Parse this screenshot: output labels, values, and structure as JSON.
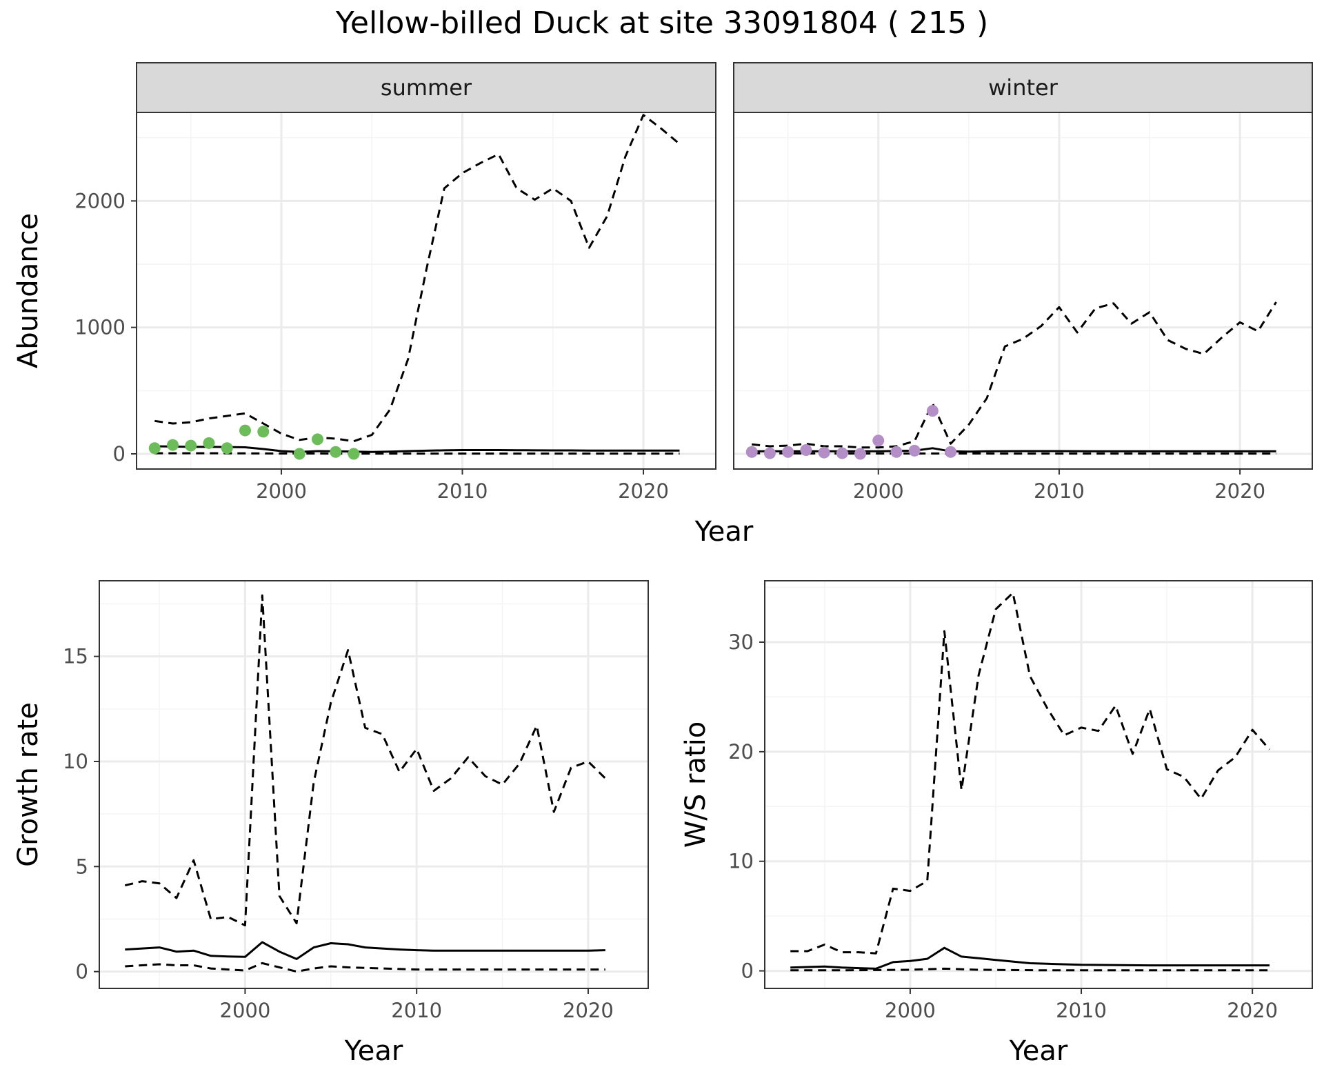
{
  "title": "Yellow-billed Duck at site 33091804 ( 215 )",
  "colors": {
    "summer_points": "#6cbd5a",
    "winter_points": "#b48ec7",
    "strip_fill": "#d9d9d9",
    "grid_major": "#ebebeb",
    "grid_minor": "#f4f4f4",
    "line": "#000000"
  },
  "chart_data": [
    {
      "type": "line",
      "panel": "summer",
      "strip_label": "summer",
      "xlabel": "Year",
      "ylabel": "Abundance",
      "xlim": [
        1992,
        2024
      ],
      "ylim": [
        -120,
        2700
      ],
      "xticks": [
        2000,
        2010,
        2020
      ],
      "yticks": [
        0,
        1000,
        2000
      ],
      "points": {
        "x": [
          1993,
          1994,
          1995,
          1996,
          1997,
          1998,
          1999,
          2001,
          2002,
          2003,
          2004
        ],
        "y": [
          45,
          70,
          65,
          85,
          45,
          185,
          175,
          0,
          115,
          15,
          0
        ]
      },
      "series": [
        {
          "style": "solid",
          "x": [
            1993,
            1994,
            1995,
            1996,
            1997,
            1998,
            1999,
            2000,
            2001,
            2002,
            2003,
            2004,
            2005,
            2006,
            2007,
            2008,
            2009,
            2010,
            2011,
            2012,
            2013,
            2014,
            2015,
            2016,
            2017,
            2018,
            2019,
            2020,
            2021,
            2022
          ],
          "values": [
            60,
            58,
            55,
            55,
            54,
            52,
            38,
            22,
            15,
            22,
            20,
            18,
            15,
            18,
            22,
            25,
            28,
            30,
            30,
            30,
            29,
            28,
            27,
            27,
            26,
            26,
            26,
            26,
            26,
            26
          ]
        },
        {
          "style": "dashed",
          "x": [
            1993,
            1994,
            1995,
            1996,
            1997,
            1998,
            1999,
            2000,
            2001,
            2002,
            2003,
            2004,
            2005,
            2006,
            2007,
            2008,
            2009,
            2010,
            2011,
            2012,
            2013,
            2014,
            2015,
            2016,
            2017,
            2018,
            2019,
            2020,
            2021,
            2022
          ],
          "values": [
            260,
            240,
            250,
            280,
            300,
            320,
            240,
            160,
            110,
            130,
            120,
            100,
            150,
            350,
            750,
            1450,
            2100,
            2220,
            2300,
            2370,
            2100,
            2010,
            2100,
            2000,
            1630,
            1880,
            2350,
            2680,
            2570,
            2450
          ]
        },
        {
          "style": "dashed",
          "x": [
            1993,
            1996,
            2000,
            2004,
            2008,
            2012,
            2016,
            2020,
            2022
          ],
          "values": [
            5,
            5,
            3,
            2,
            2,
            2,
            2,
            2,
            2
          ]
        }
      ]
    },
    {
      "type": "line",
      "panel": "winter",
      "strip_label": "winter",
      "xlabel": "Year",
      "ylabel": "",
      "xlim": [
        1992,
        2024
      ],
      "ylim": [
        -120,
        2700
      ],
      "xticks": [
        2000,
        2010,
        2020
      ],
      "yticks": [
        0,
        1000,
        2000
      ],
      "points": {
        "x": [
          1993,
          1994,
          1995,
          1996,
          1997,
          1998,
          1999,
          2000,
          2001,
          2002,
          2003,
          2004
        ],
        "y": [
          15,
          5,
          15,
          30,
          10,
          5,
          0,
          105,
          15,
          25,
          340,
          15
        ]
      },
      "series": [
        {
          "style": "solid",
          "x": [
            1993,
            1995,
            1998,
            2000,
            2002,
            2003,
            2004,
            2005,
            2006,
            2008,
            2010,
            2012,
            2014,
            2016,
            2018,
            2020,
            2022
          ],
          "values": [
            20,
            20,
            20,
            20,
            25,
            45,
            20,
            18,
            20,
            22,
            22,
            20,
            20,
            20,
            20,
            20,
            20
          ]
        },
        {
          "style": "dashed",
          "x": [
            1993,
            1994,
            1995,
            1996,
            1997,
            1998,
            1999,
            2000,
            2001,
            2002,
            2003,
            2004,
            2005,
            2006,
            2007,
            2008,
            2009,
            2010,
            2011,
            2012,
            2013,
            2014,
            2015,
            2016,
            2017,
            2018,
            2019,
            2020,
            2021,
            2022
          ],
          "values": [
            75,
            60,
            65,
            80,
            60,
            60,
            50,
            50,
            60,
            100,
            400,
            80,
            230,
            440,
            850,
            910,
            1010,
            1160,
            960,
            1150,
            1190,
            1030,
            1120,
            900,
            830,
            790,
            920,
            1040,
            970,
            1200
          ]
        },
        {
          "style": "dashed",
          "x": [
            1993,
            1998,
            2003,
            2008,
            2014,
            2022
          ],
          "values": [
            5,
            3,
            3,
            2,
            2,
            2
          ]
        }
      ]
    },
    {
      "type": "line",
      "panel": "growth",
      "xlabel": "Year",
      "ylabel": "Growth rate",
      "xlim": [
        1991.5,
        2023.5
      ],
      "ylim": [
        -0.8,
        18.6
      ],
      "xticks": [
        2000,
        2010,
        2020
      ],
      "yticks": [
        0,
        5,
        10,
        15
      ],
      "series": [
        {
          "style": "solid",
          "x": [
            1993,
            1994,
            1995,
            1996,
            1997,
            1998,
            1999,
            2000,
            2001,
            2002,
            2003,
            2004,
            2005,
            2006,
            2007,
            2008,
            2009,
            2010,
            2011,
            2012,
            2013,
            2014,
            2015,
            2016,
            2017,
            2018,
            2019,
            2020,
            2021
          ],
          "values": [
            1.05,
            1.1,
            1.15,
            0.95,
            1.0,
            0.75,
            0.72,
            0.7,
            1.4,
            0.95,
            0.6,
            1.15,
            1.35,
            1.3,
            1.15,
            1.1,
            1.05,
            1.02,
            1.0,
            1.0,
            1.0,
            1.0,
            1.0,
            1.0,
            1.0,
            1.0,
            1.0,
            1.0,
            1.02
          ]
        },
        {
          "style": "dashed",
          "x": [
            1993,
            1994,
            1995,
            1996,
            1997,
            1998,
            1999,
            2000,
            2001,
            2002,
            2003,
            2004,
            2005,
            2006,
            2007,
            2008,
            2009,
            2010,
            2011,
            2012,
            2013,
            2014,
            2015,
            2016,
            2017,
            2018,
            2019,
            2020,
            2021
          ],
          "values": [
            4.1,
            4.3,
            4.2,
            3.5,
            5.3,
            2.5,
            2.6,
            2.2,
            17.9,
            3.6,
            2.3,
            9.0,
            12.8,
            15.3,
            11.6,
            11.3,
            9.5,
            10.6,
            8.6,
            9.2,
            10.2,
            9.3,
            8.9,
            9.9,
            11.7,
            7.6,
            9.7,
            10.0,
            9.2
          ]
        },
        {
          "style": "dashed",
          "x": [
            1993,
            1994,
            1995,
            1996,
            1997,
            1998,
            1999,
            2000,
            2001,
            2002,
            2003,
            2004,
            2005,
            2006,
            2008,
            2010,
            2014,
            2018,
            2021
          ],
          "values": [
            0.25,
            0.3,
            0.35,
            0.3,
            0.3,
            0.15,
            0.1,
            0.05,
            0.4,
            0.2,
            0.0,
            0.15,
            0.25,
            0.2,
            0.15,
            0.1,
            0.1,
            0.1,
            0.1
          ]
        }
      ]
    },
    {
      "type": "line",
      "panel": "ws_ratio",
      "xlabel": "Year",
      "ylabel": "W/S ratio",
      "xlim": [
        1991.5,
        2023.5
      ],
      "ylim": [
        -1.6,
        35.6
      ],
      "xticks": [
        2000,
        2010,
        2020
      ],
      "yticks": [
        0,
        10,
        20,
        30
      ],
      "series": [
        {
          "style": "solid",
          "x": [
            1993,
            1994,
            1995,
            1996,
            1997,
            1998,
            1999,
            2000,
            2001,
            2002,
            2003,
            2004,
            2005,
            2006,
            2007,
            2008,
            2010,
            2014,
            2018,
            2021
          ],
          "values": [
            0.3,
            0.35,
            0.4,
            0.3,
            0.25,
            0.2,
            0.8,
            0.9,
            1.1,
            2.1,
            1.3,
            1.15,
            1.0,
            0.85,
            0.7,
            0.65,
            0.55,
            0.5,
            0.5,
            0.5
          ]
        },
        {
          "style": "dashed",
          "x": [
            1993,
            1994,
            1995,
            1996,
            1997,
            1998,
            1999,
            2000,
            2001,
            2002,
            2003,
            2004,
            2005,
            2006,
            2007,
            2008,
            2009,
            2010,
            2011,
            2012,
            2013,
            2014,
            2015,
            2016,
            2017,
            2018,
            2019,
            2020,
            2021
          ],
          "values": [
            1.8,
            1.8,
            2.4,
            1.7,
            1.7,
            1.6,
            7.5,
            7.3,
            8.2,
            31.0,
            16.5,
            27.0,
            33.0,
            34.5,
            26.9,
            24.0,
            21.5,
            22.2,
            21.9,
            24.2,
            19.8,
            23.9,
            18.4,
            17.7,
            15.7,
            18.3,
            19.5,
            22.0,
            20.2
          ]
        },
        {
          "style": "dashed",
          "x": [
            1993,
            1996,
            2000,
            2002,
            2004,
            2008,
            2014,
            2021
          ],
          "values": [
            0.05,
            0.05,
            0.1,
            0.2,
            0.1,
            0.05,
            0.05,
            0.05
          ]
        }
      ]
    }
  ]
}
